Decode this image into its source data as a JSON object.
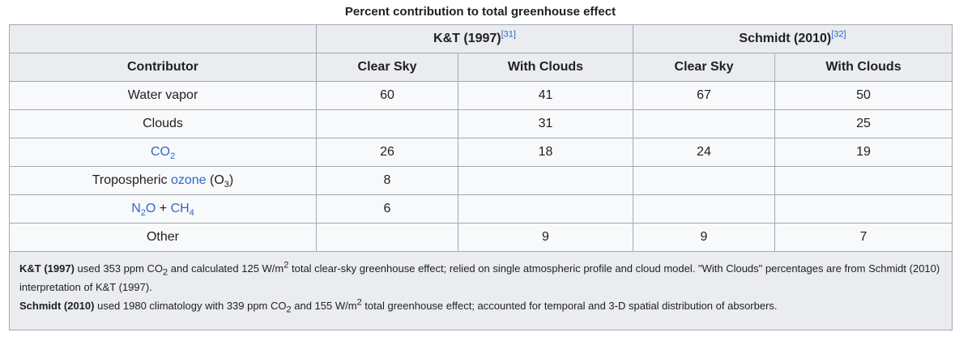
{
  "caption": "Percent contribution to total greenhouse effect",
  "groups": {
    "kt": {
      "label": "K&T (1997)",
      "ref": "[31]"
    },
    "schmidt": {
      "label": "Schmidt (2010)",
      "ref": "[32]"
    }
  },
  "columns": {
    "contributor": "Contributor",
    "kt_clear": "Clear Sky",
    "kt_clouds": "With Clouds",
    "s_clear": "Clear Sky",
    "s_clouds": "With Clouds"
  },
  "rows": {
    "water": {
      "name": "Water vapor",
      "kt_clear": "60",
      "kt_clouds": "41",
      "s_clear": "67",
      "s_clouds": "50"
    },
    "clouds": {
      "name": "Clouds",
      "kt_clear": "",
      "kt_clouds": "31",
      "s_clear": "",
      "s_clouds": "25"
    },
    "co2": {
      "name_main": "CO",
      "name_sub": "2",
      "kt_clear": "26",
      "kt_clouds": "18",
      "s_clear": "24",
      "s_clouds": "19"
    },
    "ozone": {
      "prefix": "Tropospheric ",
      "link": "ozone",
      "open": " (O",
      "sub": "3",
      "close": ")",
      "kt_clear": "8",
      "kt_clouds": "",
      "s_clear": "",
      "s_clouds": ""
    },
    "n2o": {
      "n2o_main": "N",
      "n2o_sub": "2",
      "n2o_end": "O",
      "plus": " + ",
      "ch4_main": "CH",
      "ch4_sub": "4",
      "kt_clear": "6",
      "kt_clouds": "",
      "s_clear": "",
      "s_clouds": ""
    },
    "other": {
      "name": "Other",
      "kt_clear": "",
      "kt_clouds": "9",
      "s_clear": "9",
      "s_clouds": "7"
    }
  },
  "footnote": {
    "kt": {
      "bold": "K&T (1997)",
      "t1": " used 353 ppm CO",
      "sub1": "2",
      "t2": " and calculated 125 W/m",
      "sup1": "2",
      "t3": " total clear-sky greenhouse effect; relied on single atmospheric profile and cloud model. \"With Clouds\" percentages are from Schmidt (2010) interpretation of K&T (1997)."
    },
    "schmidt": {
      "bold": "Schmidt (2010)",
      "t1": " used 1980 climatology with 339 ppm CO",
      "sub1": "2",
      "t2": " and 155 W/m",
      "sup1": "2",
      "t3": " total greenhouse effect; accounted for temporal and 3-D spatial distribution of absorbers."
    }
  }
}
